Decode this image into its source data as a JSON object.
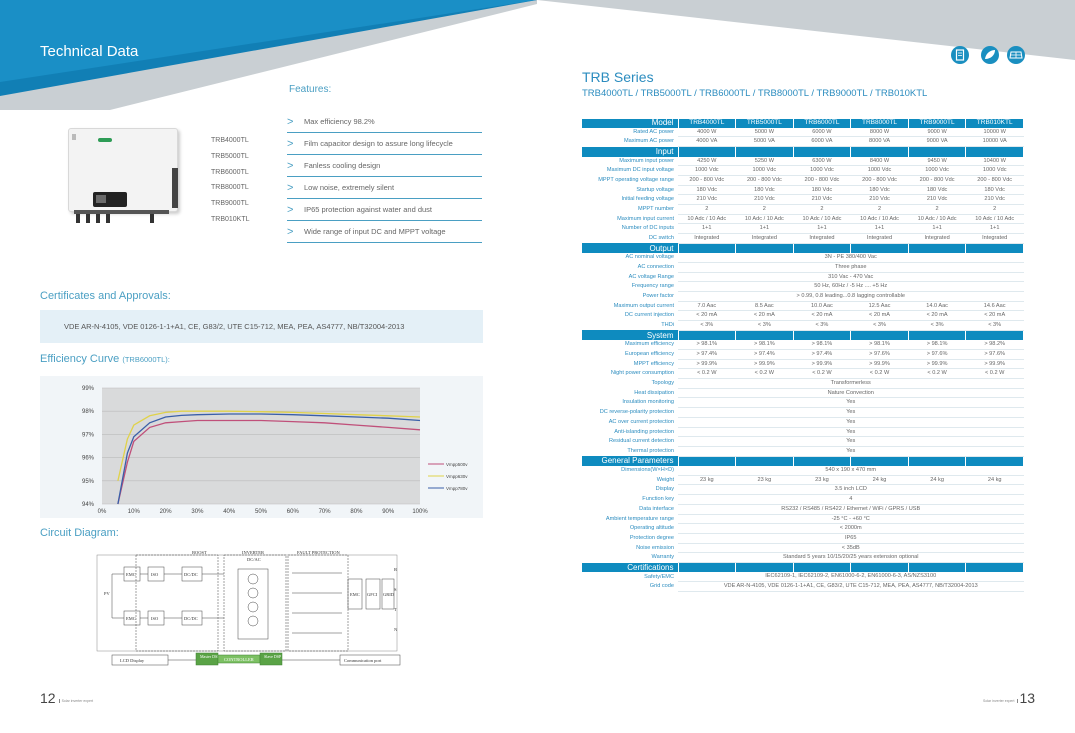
{
  "left_page": {
    "title": "Technical Data",
    "features_title": "Features:",
    "models": [
      "TRB4000TL",
      "TRB5000TL",
      "TRB6000TL",
      "TRB8000TL",
      "TRB9000TL",
      "TRB010KTL"
    ],
    "features": [
      "Max efficiency 98.2%",
      "Film capacitor design to assure long lifecycle",
      "Fanless cooling design",
      "Low noise, extremely silent",
      "IP65 protection against water and dust",
      "Wide range of input DC and MPPT voltage"
    ],
    "certificates_title": "Certificates and Approvals:",
    "certificates_text": "VDE AR-N-4105, VDE 0126-1-1+A1, CE, G83/2, UTE C15-712, MEA, PEA, AS4777, NB/T32004-2013",
    "efficiency_title": "Efficiency Curve",
    "efficiency_title_small": "(TRB6000TL):",
    "circuit_title": "Circuit Diagram:",
    "page_number": "12",
    "footer_text": "Solar inverter expert"
  },
  "chart_data": {
    "type": "line",
    "title": "",
    "xlabel": "",
    "ylabel": "",
    "x": [
      0,
      5,
      8,
      10,
      15,
      20,
      25,
      30,
      40,
      50,
      60,
      70,
      80,
      90,
      100
    ],
    "x_tick_labels": [
      "0%",
      "10%",
      "20%",
      "30%",
      "40%",
      "50%",
      "60%",
      "70%",
      "80%",
      "90%",
      "100%"
    ],
    "y_tick_labels": [
      "94%",
      "95%",
      "96%",
      "97%",
      "98%",
      "99%"
    ],
    "xlim": [
      0,
      100
    ],
    "ylim": [
      94,
      99
    ],
    "grid": true,
    "legend": "right",
    "series": [
      {
        "name": "Vmpp500v",
        "color": "#c0507a",
        "values": [
          null,
          94.0,
          95.8,
          96.7,
          97.3,
          97.5,
          97.55,
          97.6,
          97.6,
          97.6,
          97.55,
          97.5,
          97.4,
          97.3,
          97.2
        ]
      },
      {
        "name": "Vmpp630v",
        "color": "#e0d24a",
        "values": [
          null,
          95.0,
          96.8,
          97.4,
          97.8,
          97.95,
          98.0,
          98.0,
          98.0,
          97.98,
          97.95,
          97.9,
          97.85,
          97.8,
          97.75
        ]
      },
      {
        "name": "Vmpp780v",
        "color": "#3a5fa8",
        "values": [
          null,
          94.0,
          96.2,
          96.9,
          97.5,
          97.75,
          97.82,
          97.85,
          97.88,
          97.88,
          97.85,
          97.8,
          97.75,
          97.7,
          97.6
        ]
      }
    ]
  },
  "circuit": {
    "boost": "BOOST",
    "inverter": "INVERTER",
    "dcac": "DC/AC",
    "fault": "FAULT PROTECTION",
    "pv": "PV",
    "emc1": "EMC",
    "iso1": "ISO",
    "dcdc1": "DC/DC",
    "emc2": "EMC",
    "iso2": "ISO",
    "dcdc2": "DC/DC",
    "emc3": "EMC",
    "gfci": "GFCI",
    "grid": "GRID",
    "r": "R",
    "s": "S",
    "t": "T",
    "n": "N",
    "lcd": "LCD Display",
    "master": "Master DSP",
    "controller": "CONTROLLER",
    "slave": "Slave DSP",
    "comm": "Communication port"
  },
  "right_page": {
    "series_title": "TRB Series",
    "series_subtitle": "TRB4000TL / TRB5000TL / TRB6000TL / TRB8000TL / TRB9000TL / TRB010KTL",
    "page_number": "13",
    "footer_text": "Solar inverter expert",
    "icons": [
      "document-icon",
      "leaf-icon",
      "solar-panel-icon"
    ],
    "colors": {
      "accent": "#0e8bbf",
      "label": "#2b8cbf"
    }
  },
  "spec_table": {
    "header_label": "Model",
    "models": [
      "TRB4000TL",
      "TRB5000TL",
      "TRB6000TL",
      "TRB8000TL",
      "TRB9000TL",
      "TRB010KTL"
    ],
    "rows": [
      {
        "label": "Rated AC power",
        "values": [
          "4000 W",
          "5000 W",
          "6000 W",
          "8000 W",
          "9000 W",
          "10000 W"
        ]
      },
      {
        "label": "Maximum AC power",
        "values": [
          "4000 VA",
          "5000 VA",
          "6000 VA",
          "8000 VA",
          "9000 VA",
          "10000 VA"
        ]
      },
      {
        "section": "Input"
      },
      {
        "label": "Maximum input power",
        "values": [
          "4250 W",
          "5250 W",
          "6300 W",
          "8400 W",
          "9450 W",
          "10400 W"
        ]
      },
      {
        "label": "Maximum DC input voltage",
        "values": [
          "1000 Vdc",
          "1000 Vdc",
          "1000 Vdc",
          "1000 Vdc",
          "1000 Vdc",
          "1000 Vdc"
        ]
      },
      {
        "label": "MPPT operating voltage range",
        "values": [
          "200 - 800 Vdc",
          "200 - 800 Vdc",
          "200 - 800 Vdc",
          "200 - 800 Vdc",
          "200 - 800 Vdc",
          "200 - 800 Vdc"
        ]
      },
      {
        "label": "Startup voltage",
        "values": [
          "180 Vdc",
          "180 Vdc",
          "180 Vdc",
          "180 Vdc",
          "180 Vdc",
          "180 Vdc"
        ]
      },
      {
        "label": "Initial feeding voltage",
        "values": [
          "210 Vdc",
          "210 Vdc",
          "210 Vdc",
          "210 Vdc",
          "210 Vdc",
          "210 Vdc"
        ]
      },
      {
        "label": "MPPT number",
        "values": [
          "2",
          "2",
          "2",
          "2",
          "2",
          "2"
        ]
      },
      {
        "label": "Maximum input current",
        "values": [
          "10 Adc / 10 Adc",
          "10 Adc / 10 Adc",
          "10 Adc / 10 Adc",
          "10 Adc / 10 Adc",
          "10 Adc / 10 Adc",
          "10 Adc / 10 Adc"
        ]
      },
      {
        "label": "Number of DC inputs",
        "values": [
          "1+1",
          "1+1",
          "1+1",
          "1+1",
          "1+1",
          "1+1"
        ]
      },
      {
        "label": "DC switch",
        "values": [
          "Integrated",
          "Integrated",
          "Integrated",
          "Integrated",
          "Integrated",
          "Integrated"
        ]
      },
      {
        "section": "Output"
      },
      {
        "label": "AC nominal voltage",
        "span": "3N - PE 380/400 Vac"
      },
      {
        "label": "AC connection",
        "span": "Three phase"
      },
      {
        "label": "AC voltage Range",
        "span": "310 Vac - 470 Vac"
      },
      {
        "label": "Frequency range",
        "span": "50 Hz, 60Hz / -5 Hz .... +5 Hz"
      },
      {
        "label": "Power factor",
        "span": "> 0.99, 0.8 leading...0.8 lagging controllable"
      },
      {
        "label": "Maximum output current",
        "values": [
          "7.0 Aac",
          "8.5 Aac",
          "10.0 Aac",
          "12.5 Aac",
          "14.0 Aac",
          "14.6 Aac"
        ]
      },
      {
        "label": "DC current injection",
        "values": [
          "< 20 mA",
          "< 20 mA",
          "< 20 mA",
          "< 20 mA",
          "< 20 mA",
          "< 20 mA"
        ]
      },
      {
        "label": "THDi",
        "values": [
          "< 3%",
          "< 3%",
          "< 3%",
          "< 3%",
          "< 3%",
          "< 3%"
        ]
      },
      {
        "section": "System"
      },
      {
        "label": "Maximum efficiency",
        "values": [
          "> 98.1%",
          "> 98.1%",
          "> 98.1%",
          "> 98.1%",
          "> 98.1%",
          "> 98.2%"
        ]
      },
      {
        "label": "European efficiency",
        "values": [
          "> 97.4%",
          "> 97.4%",
          "> 97.4%",
          "> 97.6%",
          "> 97.6%",
          "> 97.6%"
        ]
      },
      {
        "label": "MPPT efficiency",
        "values": [
          "> 99.9%",
          "> 99.9%",
          "> 99.9%",
          "> 99.9%",
          "> 99.9%",
          "> 99.9%"
        ]
      },
      {
        "label": "Night power consumption",
        "values": [
          "< 0.2 W",
          "< 0.2 W",
          "< 0.2 W",
          "< 0.2 W",
          "< 0.2 W",
          "< 0.2 W"
        ]
      },
      {
        "label": "Topology",
        "span": "Transformerless"
      },
      {
        "label": "Heat dissipation",
        "span": "Nature Convection"
      },
      {
        "label": "Insulation monitoring",
        "span": "Yes"
      },
      {
        "label": "DC reverse-polarity protection",
        "span": "Yes"
      },
      {
        "label": "AC over current protection",
        "span": "Yes"
      },
      {
        "label": "Anti-islanding protection",
        "span": "Yes"
      },
      {
        "label": "Residual current detection",
        "span": "Yes"
      },
      {
        "label": "Thermal protection",
        "span": "Yes"
      },
      {
        "section": "General Parameters"
      },
      {
        "label": "Dimensions(W×H×D)",
        "span": "540 x 190 x 470 mm"
      },
      {
        "label": "Weight",
        "values": [
          "23 kg",
          "23 kg",
          "23 kg",
          "24 kg",
          "24 kg",
          "24 kg"
        ]
      },
      {
        "label": "Display",
        "span": "3.5 inch LCD"
      },
      {
        "label": "Function key",
        "span": "4"
      },
      {
        "label": "Data interface",
        "span": "RS232 / RS485 / RS422 / Ethernet / WiFi / GPRS / USB"
      },
      {
        "label": "Ambient temperature range",
        "span": "-25 °C - +60 °C"
      },
      {
        "label": "Operating altitude",
        "span": "< 2000m"
      },
      {
        "label": "Protection degree",
        "span": "IP65"
      },
      {
        "label": "Noise emission",
        "span": "< 35dB"
      },
      {
        "label": "Warranty",
        "span": "Standard 5 years 10/15/20/25 years extension optional"
      },
      {
        "section": "Certifications"
      },
      {
        "label": "Safety/EMC",
        "span": "IEC62109-1, IEC62109-2, EN61000-6-2, EN61000-6-3, AS/NZS3100"
      },
      {
        "label": "Grid code",
        "span": "VDE AR-N-4105, VDE 0126-1-1+A1, CE, G83/2, UTE C15-712, MEA, PEA, AS4777, NB/T32004-2013"
      }
    ]
  }
}
